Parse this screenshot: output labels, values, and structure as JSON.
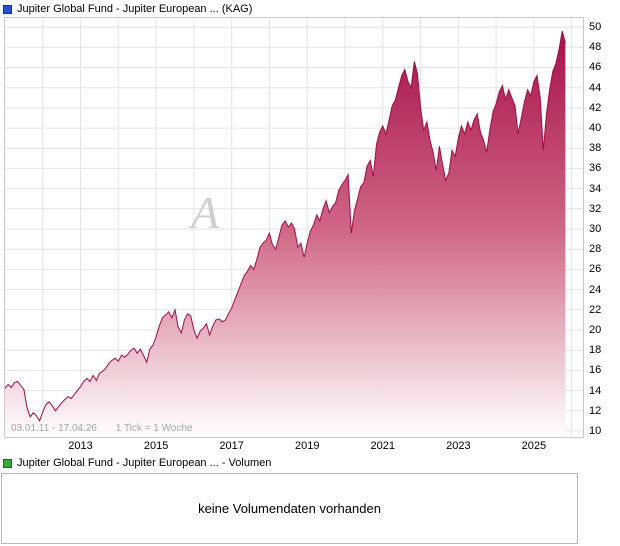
{
  "price_chart": {
    "title": "Jupiter Global Fund - Jupiter European ... (KAG)",
    "legend_color": "#2653d4",
    "range_label": "03.01.11 - 17.04.26",
    "tick_interval_label": "1 Tick = 1 Woche",
    "watermark": "A"
  },
  "volume_section": {
    "title": "Jupiter Global Fund - Jupiter European ... - Volumen",
    "legend_color": "#3aa93a",
    "empty_message": "keine Volumendaten vorhanden"
  },
  "chart_data": {
    "type": "area",
    "title": "Jupiter Global Fund - Jupiter European ... (KAG)",
    "xlabel": "",
    "ylabel": "",
    "x_axis_range": [
      2011.0,
      2026.3
    ],
    "y_axis_range": [
      9.4,
      50.9
    ],
    "x_ticks": [
      2013,
      2015,
      2017,
      2019,
      2021,
      2023,
      2025
    ],
    "y_ticks": [
      10,
      12,
      14,
      16,
      18,
      20,
      22,
      24,
      26,
      28,
      30,
      32,
      34,
      36,
      38,
      40,
      42,
      44,
      46,
      48,
      50
    ],
    "grid": true,
    "grid_color": "#e4e4e4",
    "line_color": "#a00c44",
    "fill_gradient": [
      "#a30d44",
      "#cf6586",
      "#ffffff"
    ],
    "x_start": 2011.0,
    "x_step_years": 0.083333,
    "series": [
      {
        "name": "Jupiter Global Fund - Jupiter European ... (KAG)",
        "values": [
          14.2,
          14.6,
          14.3,
          14.8,
          14.9,
          14.5,
          14.1,
          12.3,
          11.4,
          11.8,
          11.5,
          11.0,
          11.9,
          12.6,
          12.9,
          12.5,
          12.0,
          12.4,
          12.8,
          13.1,
          13.4,
          13.2,
          13.6,
          14.0,
          14.4,
          14.9,
          15.2,
          14.9,
          15.5,
          15.0,
          15.7,
          15.9,
          16.2,
          16.7,
          17.0,
          17.2,
          16.9,
          17.5,
          17.3,
          17.6,
          18.0,
          18.2,
          17.7,
          18.1,
          17.5,
          16.8,
          18.1,
          18.5,
          19.3,
          20.4,
          21.2,
          21.5,
          21.8,
          21.2,
          22.0,
          20.3,
          19.7,
          21.0,
          21.6,
          21.4,
          20.0,
          19.2,
          19.9,
          20.2,
          20.6,
          19.5,
          20.4,
          21.0,
          21.1,
          20.8,
          21.0,
          21.6,
          22.2,
          23.0,
          23.8,
          24.6,
          25.4,
          25.8,
          26.4,
          26.0,
          27.0,
          28.2,
          28.6,
          28.9,
          29.6,
          28.4,
          28.0,
          29.2,
          30.4,
          30.8,
          30.2,
          30.6,
          30.0,
          28.2,
          28.6,
          27.2,
          28.6,
          29.8,
          30.4,
          31.4,
          30.8,
          32.0,
          32.8,
          31.6,
          32.2,
          32.6,
          33.8,
          34.4,
          34.8,
          35.4,
          29.6,
          31.8,
          33.0,
          34.2,
          34.6,
          36.2,
          36.8,
          35.2,
          38.4,
          39.6,
          40.2,
          39.4,
          40.8,
          42.2,
          42.8,
          44.0,
          45.2,
          45.8,
          44.6,
          44.0,
          46.6,
          45.4,
          42.0,
          39.8,
          40.6,
          38.8,
          37.6,
          35.8,
          38.2,
          36.4,
          34.8,
          35.6,
          37.8,
          37.2,
          39.0,
          40.2,
          39.4,
          40.6,
          39.8,
          40.8,
          41.4,
          39.6,
          38.8,
          37.6,
          39.8,
          41.6,
          42.4,
          43.6,
          44.2,
          42.8,
          43.8,
          43.0,
          42.2,
          39.4,
          41.0,
          42.6,
          43.8,
          43.2,
          44.6,
          45.2,
          43.0,
          37.8,
          41.4,
          43.8,
          45.6,
          46.4,
          47.8,
          49.6,
          48.4
        ]
      }
    ]
  }
}
